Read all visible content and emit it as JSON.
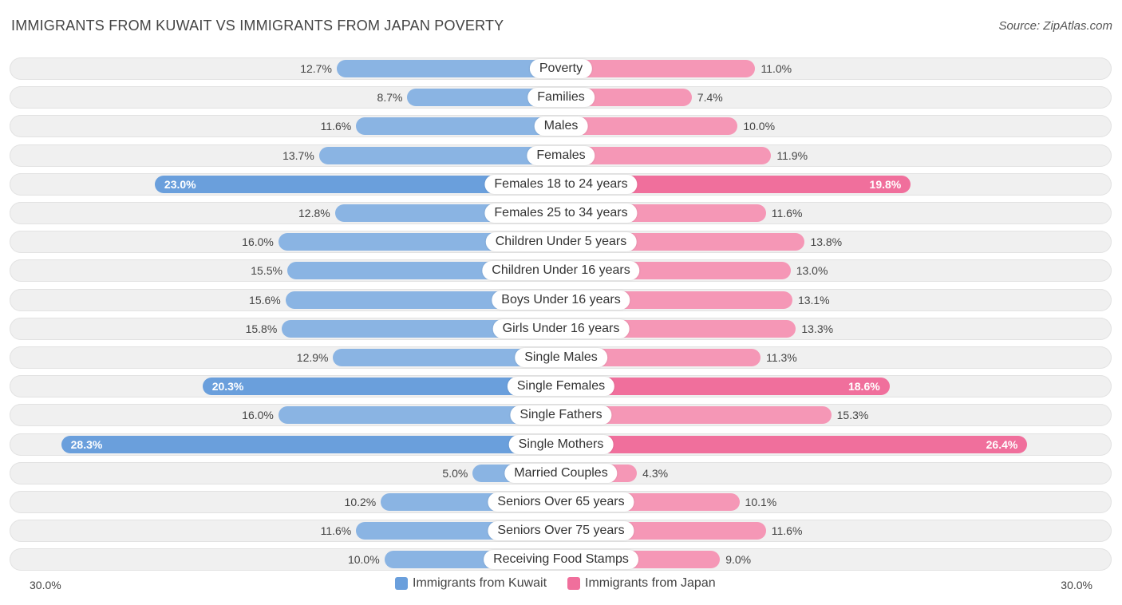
{
  "title": "IMMIGRANTS FROM KUWAIT VS IMMIGRANTS FROM JAPAN POVERTY",
  "source": "Source: ZipAtlas.com",
  "colors": {
    "kuwait": "#8ab4e3",
    "kuwait_strong": "#6a9fdc",
    "japan": "#f597b6",
    "japan_strong": "#f06f9c"
  },
  "axis": {
    "left_label": "30.0%",
    "right_label": "30.0%"
  },
  "legend": {
    "series1": "Immigrants from Kuwait",
    "series2": "Immigrants from Japan"
  },
  "chart_data": {
    "type": "bar",
    "orientation": "horizontal-diverging",
    "title": "IMMIGRANTS FROM KUWAIT VS IMMIGRANTS FROM JAPAN POVERTY",
    "xlim": [
      0,
      30
    ],
    "categories": [
      "Poverty",
      "Families",
      "Males",
      "Females",
      "Females 18 to 24 years",
      "Females 25 to 34 years",
      "Children Under 5 years",
      "Children Under 16 years",
      "Boys Under 16 years",
      "Girls Under 16 years",
      "Single Males",
      "Single Females",
      "Single Fathers",
      "Single Mothers",
      "Married Couples",
      "Seniors Over 65 years",
      "Seniors Over 75 years",
      "Receiving Food Stamps"
    ],
    "series": [
      {
        "name": "Immigrants from Kuwait",
        "values": [
          12.7,
          8.7,
          11.6,
          13.7,
          23.0,
          12.8,
          16.0,
          15.5,
          15.6,
          15.8,
          12.9,
          20.3,
          16.0,
          28.3,
          5.0,
          10.2,
          11.6,
          10.0
        ],
        "labels": [
          "12.7%",
          "8.7%",
          "11.6%",
          "13.7%",
          "23.0%",
          "12.8%",
          "16.0%",
          "15.5%",
          "15.6%",
          "15.8%",
          "12.9%",
          "20.3%",
          "16.0%",
          "28.3%",
          "5.0%",
          "10.2%",
          "11.6%",
          "10.0%"
        ]
      },
      {
        "name": "Immigrants from Japan",
        "values": [
          11.0,
          7.4,
          10.0,
          11.9,
          19.8,
          11.6,
          13.8,
          13.0,
          13.1,
          13.3,
          11.3,
          18.6,
          15.3,
          26.4,
          4.3,
          10.1,
          11.6,
          9.0
        ],
        "labels": [
          "11.0%",
          "7.4%",
          "10.0%",
          "11.9%",
          "19.8%",
          "11.6%",
          "13.8%",
          "13.0%",
          "13.1%",
          "13.3%",
          "11.3%",
          "18.6%",
          "15.3%",
          "26.4%",
          "4.3%",
          "10.1%",
          "11.6%",
          "9.0%"
        ]
      }
    ]
  }
}
